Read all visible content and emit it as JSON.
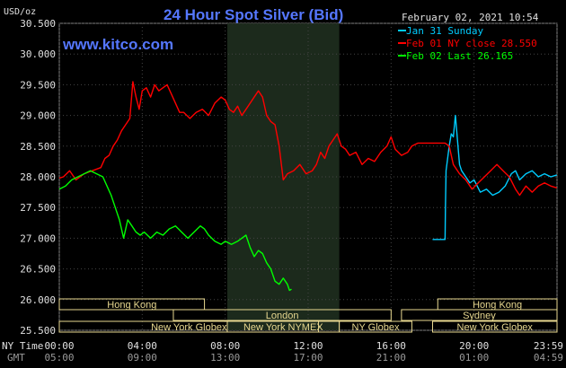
{
  "header": {
    "unit": "USD/oz",
    "title": "24 Hour Spot Silver (Bid)",
    "date": "February 02, 2021 10:54",
    "site": "www.kitco.com"
  },
  "row_labels": {
    "ny": "NY Time",
    "gmt": "GMT"
  },
  "legend": [
    {
      "label": "Jan 31 Sunday",
      "color": "#00ccff"
    },
    {
      "label": "Feb 01 NY close 28.550",
      "color": "#ff0000"
    },
    {
      "label": "Feb 02 Last 26.165",
      "color": "#00ff00"
    }
  ],
  "sessions": [
    {
      "label": "Hong Kong",
      "start": 0,
      "end": 7
    },
    {
      "label": "London",
      "start": 5.5,
      "end": 16
    },
    {
      "label": "New York Globex",
      "start": 0,
      "end": 12.5
    },
    {
      "label": "New York NYMEX",
      "start": 8.1,
      "end": 13.5
    },
    {
      "label": "NY Globex",
      "start": 13.5,
      "end": 17
    },
    {
      "label": "Hong Kong",
      "start": 18.25,
      "end": 24
    },
    {
      "label": "Sydney",
      "start": 16.5,
      "end": 24
    },
    {
      "label": "New York Globex",
      "start": 18,
      "end": 24
    }
  ],
  "chart_data": {
    "type": "line",
    "title": "24 Hour Spot Silver (Bid)",
    "ylabel": "USD/oz",
    "ylim": [
      25.5,
      30.5
    ],
    "yticks": [
      "30.500",
      "30.000",
      "29.500",
      "29.000",
      "28.500",
      "28.000",
      "27.500",
      "27.000",
      "26.500",
      "26.000",
      "25.500"
    ],
    "xlim": [
      0,
      24
    ],
    "xticks_ny": [
      "00:00",
      "04:00",
      "08:00",
      "12:00",
      "16:00",
      "20:00",
      "23:59"
    ],
    "xticks_gmt": [
      "05:00",
      "09:00",
      "13:00",
      "17:00",
      "21:00",
      "01:00",
      "04:59"
    ],
    "shaded_region": [
      8.1,
      13.5
    ],
    "series": [
      {
        "name": "Jan 31 Sunday",
        "color": "#00ccff",
        "points": [
          [
            18.0,
            26.98
          ],
          [
            18.6,
            26.98
          ],
          [
            18.62,
            27.5
          ],
          [
            18.65,
            28.1
          ],
          [
            18.8,
            28.5
          ],
          [
            18.9,
            28.7
          ],
          [
            19.0,
            28.65
          ],
          [
            19.1,
            29.0
          ],
          [
            19.2,
            28.6
          ],
          [
            19.3,
            28.2
          ],
          [
            19.4,
            28.1
          ],
          [
            19.6,
            28.0
          ],
          [
            19.8,
            27.9
          ],
          [
            20.0,
            27.95
          ],
          [
            20.3,
            27.75
          ],
          [
            20.6,
            27.8
          ],
          [
            20.9,
            27.7
          ],
          [
            21.2,
            27.75
          ],
          [
            21.5,
            27.85
          ],
          [
            21.8,
            28.05
          ],
          [
            22.0,
            28.1
          ],
          [
            22.2,
            27.95
          ],
          [
            22.5,
            28.05
          ],
          [
            22.8,
            28.1
          ],
          [
            23.1,
            28.0
          ],
          [
            23.4,
            28.05
          ],
          [
            23.7,
            28.0
          ],
          [
            23.99,
            28.03
          ]
        ]
      },
      {
        "name": "Feb 01 NY close 28.550",
        "color": "#ff0000",
        "points": [
          [
            0.0,
            27.98
          ],
          [
            0.2,
            28.0
          ],
          [
            0.5,
            28.1
          ],
          [
            0.8,
            27.95
          ],
          [
            1.2,
            28.05
          ],
          [
            1.6,
            28.1
          ],
          [
            2.0,
            28.15
          ],
          [
            2.2,
            28.3
          ],
          [
            2.4,
            28.35
          ],
          [
            2.6,
            28.5
          ],
          [
            2.8,
            28.6
          ],
          [
            3.0,
            28.75
          ],
          [
            3.2,
            28.85
          ],
          [
            3.4,
            28.95
          ],
          [
            3.55,
            29.55
          ],
          [
            3.7,
            29.3
          ],
          [
            3.85,
            29.1
          ],
          [
            4.0,
            29.4
          ],
          [
            4.2,
            29.45
          ],
          [
            4.4,
            29.3
          ],
          [
            4.6,
            29.5
          ],
          [
            4.8,
            29.4
          ],
          [
            5.0,
            29.45
          ],
          [
            5.2,
            29.5
          ],
          [
            5.4,
            29.35
          ],
          [
            5.6,
            29.2
          ],
          [
            5.8,
            29.05
          ],
          [
            6.0,
            29.05
          ],
          [
            6.3,
            28.95
          ],
          [
            6.6,
            29.05
          ],
          [
            6.9,
            29.1
          ],
          [
            7.2,
            29.0
          ],
          [
            7.5,
            29.2
          ],
          [
            7.8,
            29.3
          ],
          [
            8.0,
            29.25
          ],
          [
            8.2,
            29.1
          ],
          [
            8.4,
            29.05
          ],
          [
            8.6,
            29.15
          ],
          [
            8.8,
            29.0
          ],
          [
            9.0,
            29.1
          ],
          [
            9.3,
            29.25
          ],
          [
            9.6,
            29.4
          ],
          [
            9.8,
            29.3
          ],
          [
            10.0,
            29.0
          ],
          [
            10.2,
            28.9
          ],
          [
            10.4,
            28.85
          ],
          [
            10.6,
            28.5
          ],
          [
            10.8,
            27.95
          ],
          [
            11.0,
            28.05
          ],
          [
            11.3,
            28.1
          ],
          [
            11.6,
            28.2
          ],
          [
            11.9,
            28.05
          ],
          [
            12.2,
            28.1
          ],
          [
            12.4,
            28.2
          ],
          [
            12.6,
            28.4
          ],
          [
            12.8,
            28.3
          ],
          [
            13.0,
            28.5
          ],
          [
            13.2,
            28.6
          ],
          [
            13.4,
            28.7
          ],
          [
            13.6,
            28.5
          ],
          [
            13.8,
            28.45
          ],
          [
            14.0,
            28.35
          ],
          [
            14.3,
            28.4
          ],
          [
            14.6,
            28.2
          ],
          [
            14.9,
            28.3
          ],
          [
            15.2,
            28.25
          ],
          [
            15.5,
            28.4
          ],
          [
            15.8,
            28.5
          ],
          [
            16.0,
            28.65
          ],
          [
            16.2,
            28.45
          ],
          [
            16.5,
            28.35
          ],
          [
            16.8,
            28.4
          ],
          [
            17.0,
            28.5
          ],
          [
            17.3,
            28.55
          ],
          [
            18.6,
            28.55
          ],
          [
            18.8,
            28.5
          ],
          [
            19.0,
            28.2
          ],
          [
            19.3,
            28.05
          ],
          [
            19.6,
            27.95
          ],
          [
            19.9,
            27.8
          ],
          [
            20.2,
            27.9
          ],
          [
            20.5,
            28.0
          ],
          [
            20.8,
            28.1
          ],
          [
            21.1,
            28.2
          ],
          [
            21.4,
            28.1
          ],
          [
            21.7,
            28.0
          ],
          [
            22.0,
            27.8
          ],
          [
            22.2,
            27.7
          ],
          [
            22.5,
            27.85
          ],
          [
            22.8,
            27.75
          ],
          [
            23.1,
            27.85
          ],
          [
            23.4,
            27.9
          ],
          [
            23.7,
            27.85
          ],
          [
            23.99,
            27.82
          ]
        ]
      },
      {
        "name": "Feb 02 Last 26.165",
        "color": "#00ff00",
        "points": [
          [
            0.0,
            27.8
          ],
          [
            0.3,
            27.85
          ],
          [
            0.6,
            27.95
          ],
          [
            0.9,
            28.0
          ],
          [
            1.2,
            28.05
          ],
          [
            1.5,
            28.1
          ],
          [
            1.8,
            28.05
          ],
          [
            2.1,
            28.0
          ],
          [
            2.3,
            27.85
          ],
          [
            2.5,
            27.7
          ],
          [
            2.7,
            27.5
          ],
          [
            2.9,
            27.3
          ],
          [
            3.1,
            27.0
          ],
          [
            3.3,
            27.3
          ],
          [
            3.5,
            27.2
          ],
          [
            3.7,
            27.1
          ],
          [
            3.9,
            27.05
          ],
          [
            4.1,
            27.1
          ],
          [
            4.4,
            27.0
          ],
          [
            4.7,
            27.1
          ],
          [
            5.0,
            27.05
          ],
          [
            5.3,
            27.15
          ],
          [
            5.6,
            27.2
          ],
          [
            5.9,
            27.1
          ],
          [
            6.2,
            27.0
          ],
          [
            6.5,
            27.1
          ],
          [
            6.8,
            27.2
          ],
          [
            7.0,
            27.15
          ],
          [
            7.2,
            27.05
          ],
          [
            7.5,
            26.95
          ],
          [
            7.8,
            26.9
          ],
          [
            8.0,
            26.95
          ],
          [
            8.3,
            26.9
          ],
          [
            8.6,
            26.95
          ],
          [
            8.8,
            27.0
          ],
          [
            9.0,
            27.05
          ],
          [
            9.2,
            26.85
          ],
          [
            9.4,
            26.7
          ],
          [
            9.6,
            26.8
          ],
          [
            9.8,
            26.75
          ],
          [
            10.0,
            26.6
          ],
          [
            10.2,
            26.5
          ],
          [
            10.4,
            26.3
          ],
          [
            10.6,
            26.25
          ],
          [
            10.8,
            26.35
          ],
          [
            11.0,
            26.25
          ],
          [
            11.1,
            26.15
          ],
          [
            11.2,
            26.17
          ]
        ]
      }
    ]
  }
}
